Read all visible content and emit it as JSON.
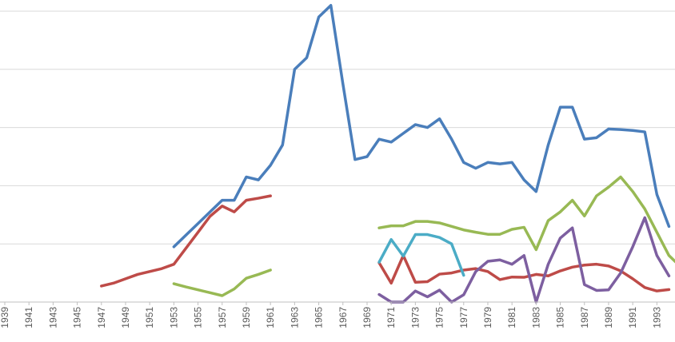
{
  "chart_data": {
    "type": "line",
    "x_tick_labels": [
      "1939",
      "1941",
      "1943",
      "1945",
      "1947",
      "1949",
      "1951",
      "1953",
      "1955",
      "1957",
      "1959",
      "1961",
      "1963",
      "1965",
      "1967",
      "1969",
      "1971",
      "1973",
      "1975",
      "1977",
      "1979",
      "1981",
      "1983",
      "1985",
      "1987",
      "1989",
      "1991",
      "1993"
    ],
    "xlim": [
      1939,
      1994.5
    ],
    "ylim": [
      0,
      100
    ],
    "y_gridlines": [
      0,
      20,
      40,
      60,
      80,
      100
    ],
    "y_tick_labels_visible": false,
    "legend": "none",
    "grid": true,
    "series": [
      {
        "color": "#4a7ebb",
        "points": [
          [
            1953,
            19
          ],
          [
            1954,
            23
          ],
          [
            1955,
            27
          ],
          [
            1956,
            31
          ],
          [
            1957,
            35
          ],
          [
            1958,
            35
          ],
          [
            1959,
            43
          ],
          [
            1960,
            42
          ],
          [
            1961,
            47
          ],
          [
            1962,
            54
          ],
          [
            1963,
            80
          ],
          [
            1964,
            84
          ],
          [
            1965,
            98
          ],
          [
            1966,
            102
          ],
          [
            1967,
            75
          ],
          [
            1968,
            49
          ],
          [
            1969,
            50
          ],
          [
            1970,
            56
          ],
          [
            1971,
            55
          ],
          [
            1972,
            58
          ],
          [
            1973,
            61
          ],
          [
            1974,
            60
          ],
          [
            1975,
            63
          ],
          [
            1976,
            56
          ],
          [
            1977,
            48
          ],
          [
            1978,
            46
          ],
          [
            1979,
            48
          ],
          [
            1980,
            47.5
          ],
          [
            1981,
            48
          ],
          [
            1982,
            42
          ],
          [
            1983,
            38
          ],
          [
            1984,
            54
          ],
          [
            1985,
            67
          ],
          [
            1986,
            67
          ],
          [
            1987,
            56
          ],
          [
            1988,
            56.5
          ],
          [
            1989,
            59.5
          ],
          [
            1990,
            59.3
          ],
          [
            1991,
            59
          ],
          [
            1992,
            58.5
          ],
          [
            1993,
            37
          ],
          [
            1994,
            26
          ]
        ]
      },
      {
        "color": "#be4b48",
        "points": [
          [
            1947,
            5.5
          ],
          [
            1948,
            6.5
          ],
          [
            1949,
            8
          ],
          [
            1950,
            9.5
          ],
          [
            1951,
            10.5
          ],
          [
            1952,
            11.5
          ],
          [
            1953,
            13
          ],
          [
            1954,
            18.5
          ],
          [
            1955,
            24
          ],
          [
            1956,
            29.5
          ],
          [
            1957,
            33
          ],
          [
            1958,
            31
          ],
          [
            1959,
            35
          ],
          [
            1960,
            35.7
          ],
          [
            1961,
            36.5
          ]
        ]
      },
      {
        "color": "#be4b48",
        "points": [
          [
            1970,
            13.5
          ],
          [
            1971,
            6.5
          ],
          [
            1972,
            16
          ],
          [
            1973,
            6.8
          ],
          [
            1974,
            7
          ],
          [
            1975,
            9.6
          ],
          [
            1976,
            10
          ],
          [
            1977,
            11
          ],
          [
            1978,
            11.5
          ],
          [
            1979,
            10.5
          ],
          [
            1980,
            7.7
          ],
          [
            1981,
            8.6
          ],
          [
            1982,
            8.5
          ],
          [
            1983,
            9.5
          ],
          [
            1984,
            9
          ],
          [
            1985,
            10.7
          ],
          [
            1986,
            12
          ],
          [
            1987,
            12.7
          ],
          [
            1988,
            13
          ],
          [
            1989,
            12.4
          ],
          [
            1990,
            10.7
          ],
          [
            1991,
            8
          ],
          [
            1992,
            5
          ],
          [
            1993,
            3.8
          ],
          [
            1994,
            4.3
          ]
        ]
      },
      {
        "color": "#98b954",
        "points": [
          [
            1953,
            6.3
          ],
          [
            1954,
            5.2
          ],
          [
            1955,
            4.2
          ],
          [
            1956,
            3.2
          ],
          [
            1957,
            2.2
          ],
          [
            1958,
            4.5
          ],
          [
            1959,
            8.2
          ],
          [
            1960,
            9.5
          ],
          [
            1961,
            11
          ]
        ]
      },
      {
        "color": "#98b954",
        "points": [
          [
            1970,
            25.5
          ],
          [
            1971,
            26.2
          ],
          [
            1972,
            26.2
          ],
          [
            1973,
            27.7
          ],
          [
            1974,
            27.7
          ],
          [
            1975,
            27.2
          ],
          [
            1976,
            26
          ],
          [
            1977,
            24.8
          ],
          [
            1978,
            24
          ],
          [
            1979,
            23.3
          ],
          [
            1980,
            23.3
          ],
          [
            1981,
            25
          ],
          [
            1982,
            25.7
          ],
          [
            1983,
            18
          ],
          [
            1984,
            28
          ],
          [
            1985,
            31
          ],
          [
            1986,
            35
          ],
          [
            1987,
            29.6
          ],
          [
            1988,
            36.5
          ],
          [
            1989,
            39.5
          ],
          [
            1990,
            43
          ],
          [
            1991,
            38
          ],
          [
            1992,
            32
          ],
          [
            1993,
            24
          ],
          [
            1994,
            16
          ],
          [
            1995,
            12
          ]
        ]
      },
      {
        "color": "#4bacc6",
        "points": [
          [
            1970,
            13.7
          ],
          [
            1971,
            21.5
          ],
          [
            1972,
            15.8
          ],
          [
            1973,
            23.2
          ],
          [
            1974,
            23.2
          ],
          [
            1975,
            22.2
          ],
          [
            1976,
            20
          ],
          [
            1977,
            9.2
          ]
        ]
      },
      {
        "color": "#7d5fa0",
        "points": [
          [
            1970,
            2.6
          ],
          [
            1971,
            0
          ],
          [
            1972,
            0
          ],
          [
            1973,
            3.8
          ],
          [
            1974,
            1.8
          ],
          [
            1975,
            4.1
          ],
          [
            1976,
            0
          ],
          [
            1977,
            2.5
          ],
          [
            1978,
            10.5
          ],
          [
            1979,
            14
          ],
          [
            1980,
            14.5
          ],
          [
            1981,
            13
          ],
          [
            1982,
            16
          ],
          [
            1983,
            0
          ],
          [
            1984,
            13
          ],
          [
            1985,
            22
          ],
          [
            1986,
            25.5
          ],
          [
            1987,
            6
          ],
          [
            1988,
            4
          ],
          [
            1989,
            4.2
          ],
          [
            1990,
            10
          ],
          [
            1991,
            19
          ],
          [
            1992,
            29
          ],
          [
            1993,
            16
          ],
          [
            1994,
            9
          ]
        ]
      }
    ]
  }
}
